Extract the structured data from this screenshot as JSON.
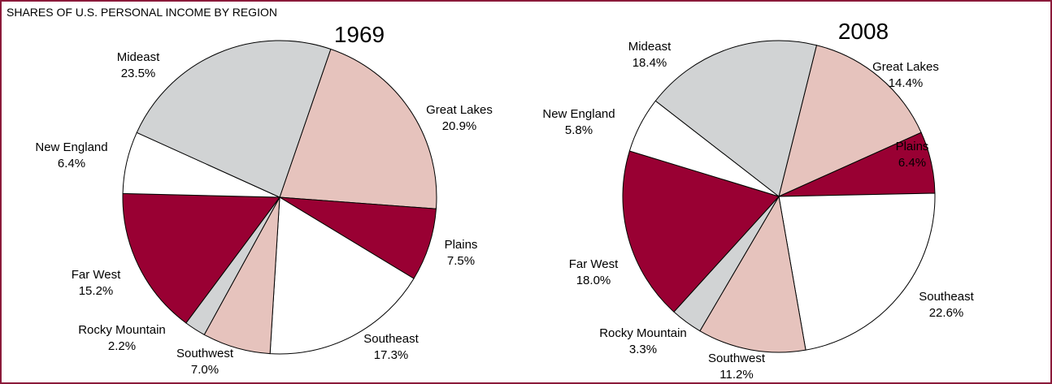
{
  "title": "SHARES OF U.S. PERSONAL INCOME BY REGION",
  "chart_data": [
    {
      "type": "pie",
      "title": "1969",
      "categories": [
        "Great Lakes",
        "Plains",
        "Southeast",
        "Southwest",
        "Rocky Mountain",
        "Far West",
        "New England",
        "Mideast"
      ],
      "values": [
        20.9,
        7.5,
        17.3,
        7.0,
        2.2,
        15.2,
        6.4,
        23.5
      ],
      "value_labels": [
        "20.9%",
        "7.5%",
        "17.3%",
        "7.0%",
        "2.2%",
        "15.2%",
        "6.4%",
        "23.5%"
      ],
      "colors": [
        "#e6c3bd",
        "#990033",
        "#ffffff",
        "#e6c3bd",
        "#d1d3d4",
        "#990033",
        "#ffffff",
        "#d1d3d4"
      ]
    },
    {
      "type": "pie",
      "title": "2008",
      "categories": [
        "Great Lakes",
        "Plains",
        "Southeast",
        "Southwest",
        "Rocky Mountain",
        "Far West",
        "New England",
        "Mideast"
      ],
      "values": [
        14.4,
        6.4,
        22.6,
        11.2,
        3.3,
        18.0,
        5.8,
        18.4
      ],
      "value_labels": [
        "14.4%",
        "6.4%",
        "22.6%",
        "11.2%",
        "3.3%",
        "18.0%",
        "5.8%",
        "18.4%"
      ],
      "colors": [
        "#e6c3bd",
        "#990033",
        "#ffffff",
        "#e6c3bd",
        "#d1d3d4",
        "#990033",
        "#ffffff",
        "#d1d3d4"
      ]
    }
  ]
}
